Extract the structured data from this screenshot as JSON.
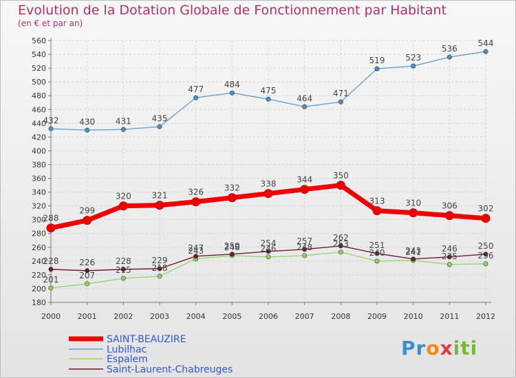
{
  "title": "Evolution de la Dotation Globale de Fonctionnement par Habitant",
  "subtitle": "(en € et par an)",
  "logo_text": "Proxiti",
  "colors": {
    "title": "#b0306a",
    "series": [
      "#ee0000",
      "#6ba0d0",
      "#99d66e",
      "#6a1f24"
    ]
  },
  "chart_data": {
    "type": "line",
    "x": [
      "2000",
      "2001",
      "2002",
      "2003",
      "2004",
      "2005",
      "2006",
      "2007",
      "2008",
      "2009",
      "2010",
      "2011",
      "2012"
    ],
    "ylim": [
      180,
      560
    ],
    "yticks": [
      180,
      200,
      220,
      240,
      260,
      280,
      300,
      320,
      340,
      360,
      380,
      400,
      420,
      440,
      460,
      480,
      500,
      520,
      540,
      560
    ],
    "grid": true,
    "legend_position": "bottom-left",
    "series": [
      {
        "name": "SAINT-BEAUZIRE",
        "values": [
          288,
          299,
          320,
          321,
          326,
          332,
          338,
          344,
          350,
          313,
          310,
          306,
          302
        ]
      },
      {
        "name": "Lubilhac",
        "values": [
          432,
          430,
          431,
          435,
          477,
          484,
          475,
          464,
          471,
          519,
          523,
          536,
          544
        ]
      },
      {
        "name": "Espalem",
        "values": [
          201,
          207,
          215,
          218,
          243,
          248,
          246,
          248,
          253,
          240,
          241,
          235,
          236
        ]
      },
      {
        "name": "Saint-Laurent-Chabreuges",
        "values": [
          228,
          226,
          228,
          229,
          247,
          250,
          254,
          257,
          262,
          251,
          243,
          246,
          250
        ]
      }
    ]
  }
}
